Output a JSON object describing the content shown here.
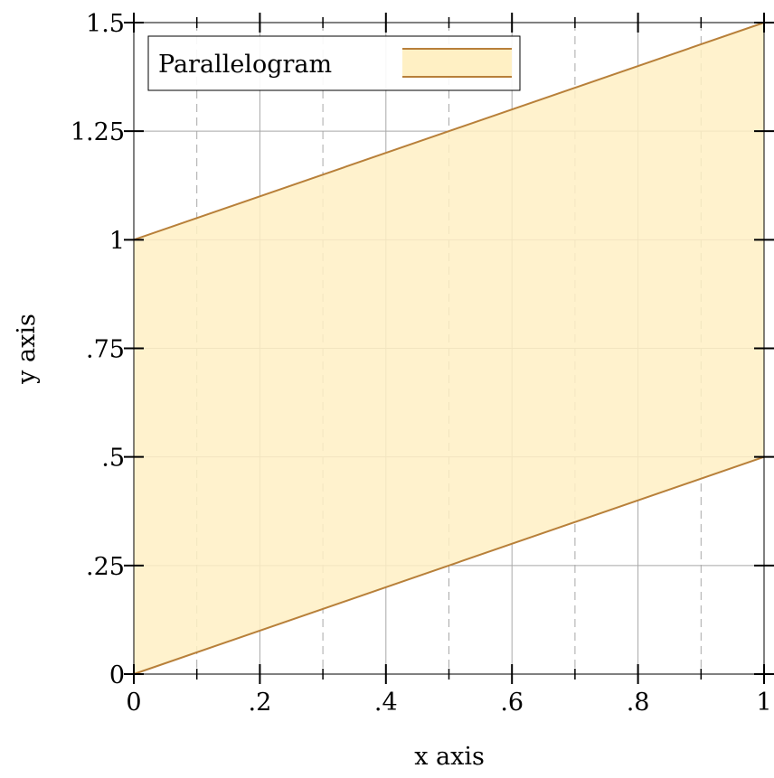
{
  "chart_data": {
    "type": "area",
    "title": "",
    "xlabel": "x axis",
    "ylabel": "y axis",
    "xlim": [
      0,
      1
    ],
    "ylim": [
      0,
      1.5
    ],
    "x_ticks": [
      {
        "value": 0,
        "label": "0"
      },
      {
        "value": 0.2,
        "label": ".2"
      },
      {
        "value": 0.4,
        "label": ".4"
      },
      {
        "value": 0.6,
        "label": ".6"
      },
      {
        "value": 0.8,
        "label": ".8"
      },
      {
        "value": 1,
        "label": "1"
      }
    ],
    "x_minor_ticks": [
      0.1,
      0.3,
      0.5,
      0.7,
      0.9
    ],
    "y_ticks": [
      {
        "value": 0,
        "label": "0"
      },
      {
        "value": 0.25,
        "label": ".25"
      },
      {
        "value": 0.5,
        "label": ".5"
      },
      {
        "value": 0.75,
        "label": ".75"
      },
      {
        "value": 1,
        "label": "1"
      },
      {
        "value": 1.25,
        "label": "1.25"
      },
      {
        "value": 1.5,
        "label": "1.5"
      }
    ],
    "grid": true,
    "legend_position": "top-left",
    "series": [
      {
        "name": "Parallelogram",
        "lower": {
          "x": [
            0,
            1
          ],
          "y": [
            0,
            0.5
          ]
        },
        "upper": {
          "x": [
            0,
            1
          ],
          "y": [
            1,
            1.5
          ]
        },
        "fill_color": "#fff0c4",
        "line_color": "#b8803a"
      }
    ]
  }
}
